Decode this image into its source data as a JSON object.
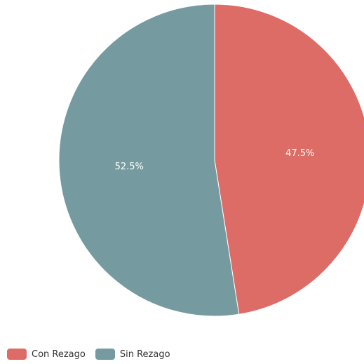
{
  "chart_data": {
    "type": "pie",
    "categories": [
      "Con Rezago",
      "Sin Rezago"
    ],
    "values": [
      47.5,
      52.5
    ],
    "data_labels": [
      "47.5%",
      "52.5%"
    ],
    "colors": [
      "#dd6b66",
      "#759aa0"
    ],
    "start_angle_deg": 0,
    "direction": "clockwise",
    "legend_placement": "bottom-left"
  },
  "legend": {
    "items": [
      {
        "label": "Con Rezago",
        "color": "#dd6b66"
      },
      {
        "label": "Sin Rezago",
        "color": "#759aa0"
      }
    ]
  }
}
